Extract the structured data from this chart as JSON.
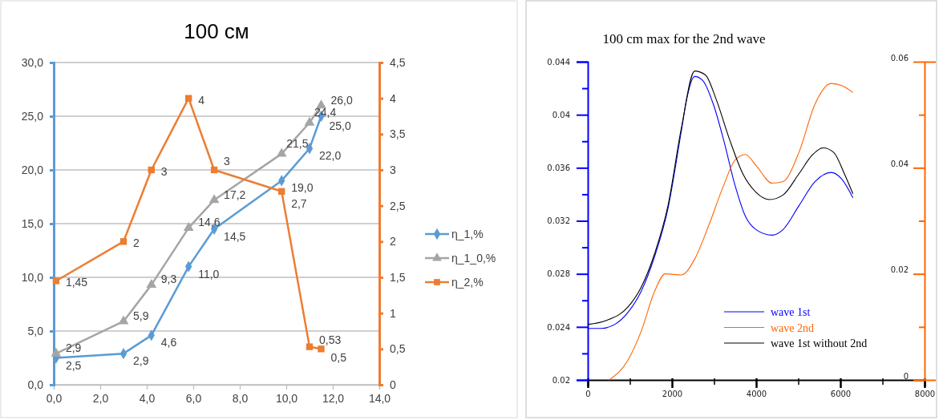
{
  "chart_data": [
    {
      "type": "line",
      "title": "100 см",
      "x": [
        0.1,
        3.0,
        4.2,
        5.8,
        6.9,
        9.8,
        11.0,
        11.5
      ],
      "series": [
        {
          "name": "η_1,%",
          "color": "#5b9bd5",
          "marker": "diamond",
          "values": [
            2.5,
            2.9,
            4.6,
            11.0,
            14.5,
            19.0,
            22.0,
            25.0
          ],
          "value_labels": [
            "2,5",
            "2,9",
            "4,6",
            "11,0",
            "14,5",
            "19,0",
            "22,0",
            "25,0"
          ]
        },
        {
          "name": "η_1_0,%",
          "color": "#a5a5a5",
          "marker": "triangle",
          "values": [
            2.9,
            5.9,
            9.3,
            14.6,
            17.2,
            21.5,
            24.4,
            26.0
          ],
          "value_labels": [
            "2,9",
            "5,9",
            "9,3",
            "14,6",
            "17,2",
            "21,5",
            "24,4",
            "26,0"
          ]
        },
        {
          "name": "η_2,%",
          "color": "#ed7d31",
          "marker": "square",
          "axis": "y2",
          "values": [
            1.45,
            2,
            3,
            4,
            3,
            2.7,
            0.53,
            0.5
          ],
          "value_labels": [
            "1,45",
            "2",
            "3",
            "4",
            "3",
            "2,7",
            "0,53",
            "0,5"
          ]
        }
      ],
      "xlim": [
        0,
        14
      ],
      "xticks": [
        {
          "value": 0,
          "label": "0,0"
        },
        {
          "value": 2,
          "label": "2,0"
        },
        {
          "value": 4,
          "label": "4,0"
        },
        {
          "value": 6,
          "label": "6,0"
        },
        {
          "value": 8,
          "label": "8,0"
        },
        {
          "value": 10,
          "label": "10,0"
        },
        {
          "value": 12,
          "label": "12,0"
        },
        {
          "value": 14,
          "label": "14,0"
        }
      ],
      "ylim": [
        0,
        30
      ],
      "yticks": [
        {
          "value": 0,
          "label": "0,0"
        },
        {
          "value": 5,
          "label": "5,0"
        },
        {
          "value": 10,
          "label": "10,0"
        },
        {
          "value": 15,
          "label": "15,0"
        },
        {
          "value": 20,
          "label": "20,0"
        },
        {
          "value": 25,
          "label": "25,0"
        },
        {
          "value": 30,
          "label": "30,0"
        }
      ],
      "y2lim": [
        0,
        4.5
      ],
      "y2ticks": [
        0,
        {
          "value": 0.5,
          "label": "0,5"
        },
        1,
        {
          "value": 1.5,
          "label": "1,5"
        },
        2,
        {
          "value": 2.5,
          "label": "2,5"
        },
        3,
        {
          "value": 3.5,
          "label": "3,5"
        },
        4,
        {
          "value": 4.5,
          "label": "4,5"
        }
      ],
      "grid": "y",
      "legend": "right"
    },
    {
      "type": "line",
      "title": "100 cm max for the 2nd wave",
      "marker": "none",
      "series": [
        {
          "name": "wave 1st",
          "color": "#0000ff",
          "x": [
            0,
            300,
            635,
            952,
            1270,
            1587,
            1905,
            2222,
            2349,
            2540,
            2730,
            2984,
            3238,
            3492,
            3746,
            4000,
            4381,
            4635,
            5016,
            5397,
            5778,
            6032,
            6298
          ],
          "values": [
            0.02388,
            0.02388,
            0.02418,
            0.02509,
            0.0267,
            0.02931,
            0.03293,
            0.03877,
            0.04118,
            0.04289,
            0.04259,
            0.04078,
            0.03796,
            0.03474,
            0.03233,
            0.03133,
            0.03092,
            0.03133,
            0.03314,
            0.03495,
            0.03565,
            0.03515,
            0.03374
          ]
        },
        {
          "name": "wave 2nd",
          "color": "#ff6600",
          "axis": "y2",
          "x": [
            508,
            952,
            1270,
            1587,
            1841,
            2222,
            2540,
            2857,
            3238,
            3492,
            3746,
            4000,
            4381,
            4635,
            5016,
            5397,
            5778,
            6032,
            6298
          ],
          "values": [
            0,
            0.0037,
            0.0092,
            0.0167,
            0.02,
            0.0198,
            0.0228,
            0.0288,
            0.0369,
            0.0414,
            0.0425,
            0.0404,
            0.0371,
            0.0374,
            0.0429,
            0.052,
            0.0559,
            0.0555,
            0.0542
          ]
        },
        {
          "name": "wave 1st without 2nd",
          "color": "#000000",
          "x": [
            0,
            444,
            952,
            1270,
            1587,
            1905,
            2222,
            2540,
            2794,
            3048,
            3365,
            3683,
            4000,
            4317,
            4635,
            5016,
            5333,
            5587,
            5841,
            6095,
            6298
          ],
          "values": [
            0.02418,
            0.02449,
            0.02549,
            0.027,
            0.02952,
            0.03314,
            0.03897,
            0.0433,
            0.043,
            0.04118,
            0.03816,
            0.03555,
            0.03414,
            0.0336,
            0.03394,
            0.03555,
            0.03696,
            0.0375,
            0.03716,
            0.03555,
            0.03404
          ]
        }
      ],
      "xlim": [
        0,
        8000
      ],
      "xticks": [
        0,
        {
          "value": 1000,
          "label": null
        },
        2000,
        {
          "value": 3000,
          "label": null
        },
        4000,
        {
          "value": 5000,
          "label": null
        },
        6000,
        {
          "value": 7000,
          "label": null
        },
        8000
      ],
      "ylim": [
        0.02,
        0.044
      ],
      "yticks": [
        0.02,
        {
          "value": 0.022,
          "label": null
        },
        0.024,
        {
          "value": 0.026,
          "label": null
        },
        0.028,
        {
          "value": 0.03,
          "label": null
        },
        0.032,
        {
          "value": 0.034,
          "label": null
        },
        0.036,
        {
          "value": 0.038,
          "label": null
        },
        0.04,
        {
          "value": 0.042,
          "label": null
        },
        0.044
      ],
      "y2lim": [
        0,
        0.06
      ],
      "y2ticks": [
        0,
        {
          "value": 0.01,
          "label": null
        },
        0.02,
        {
          "value": 0.03,
          "label": null
        },
        0.04,
        {
          "value": 0.05,
          "label": null
        },
        0.06
      ],
      "legend": "bottom right"
    }
  ]
}
